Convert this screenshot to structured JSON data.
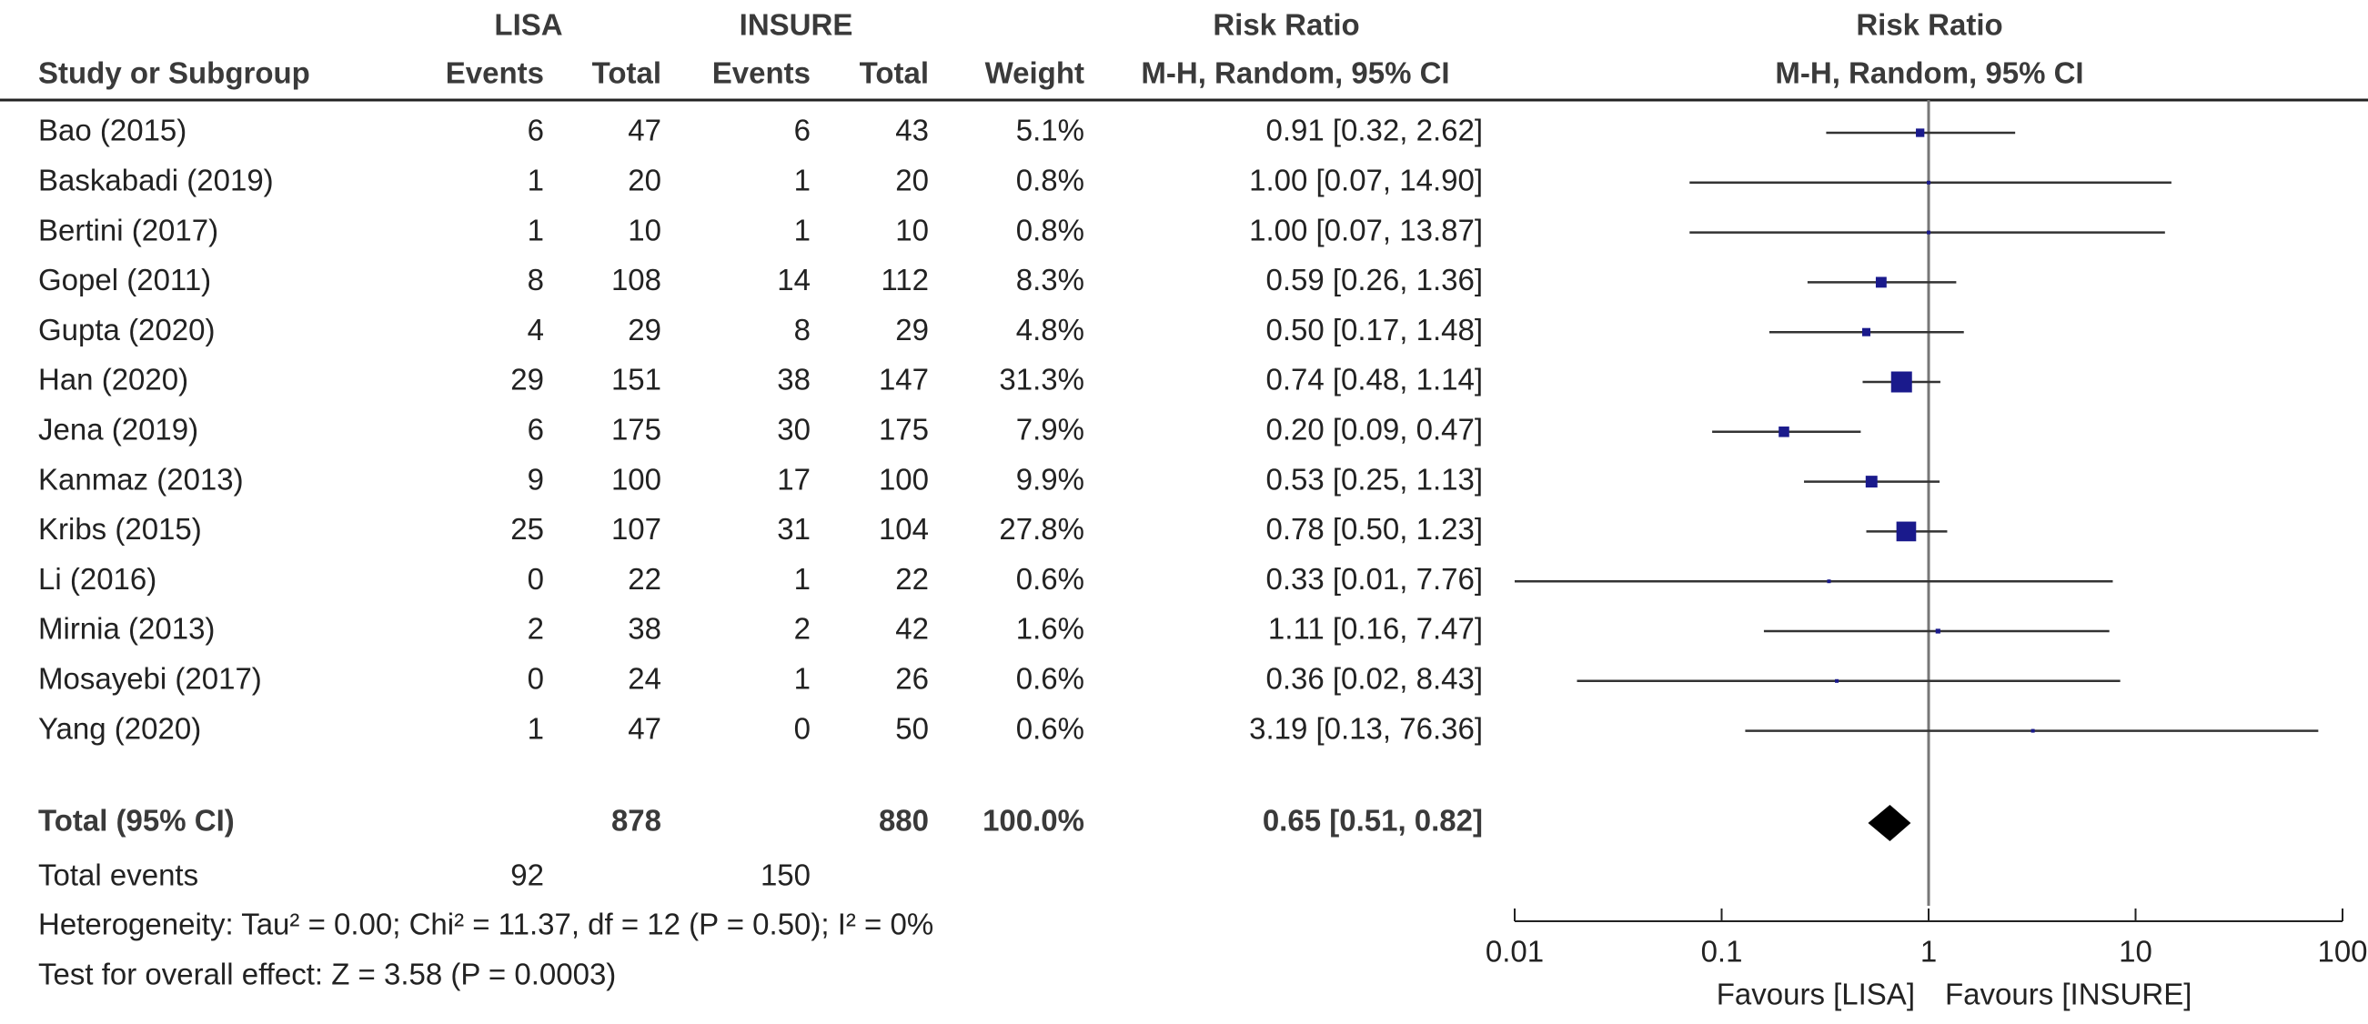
{
  "chart_data": {
    "type": "forest",
    "header": {
      "study": "Study or Subgroup",
      "group_1": "LISA",
      "group_2": "INSURE",
      "events_1": "Events",
      "total_1": "Total",
      "events_2": "Events",
      "total_2": "Total",
      "weight": "Weight",
      "table_effect": "Risk Ratio",
      "table_method": "M-H, Random, 95% CI",
      "plot_effect": "Risk Ratio",
      "plot_method": "M-H, Random, 95% CI"
    },
    "studies": [
      {
        "name": "Bao (2015)",
        "events_1": 6,
        "total_1": 47,
        "events_2": 6,
        "total_2": 43,
        "weight": 5.1,
        "weight_label": "5.1%",
        "rr": 0.91,
        "ci_low": 0.32,
        "ci_high": 2.62,
        "rr_label": "0.91 [0.32, 2.62]"
      },
      {
        "name": "Baskabadi (2019)",
        "events_1": 1,
        "total_1": 20,
        "events_2": 1,
        "total_2": 20,
        "weight": 0.8,
        "weight_label": "0.8%",
        "rr": 1.0,
        "ci_low": 0.07,
        "ci_high": 14.9,
        "rr_label": "1.00 [0.07, 14.90]"
      },
      {
        "name": "Bertini (2017)",
        "events_1": 1,
        "total_1": 10,
        "events_2": 1,
        "total_2": 10,
        "weight": 0.8,
        "weight_label": "0.8%",
        "rr": 1.0,
        "ci_low": 0.07,
        "ci_high": 13.87,
        "rr_label": "1.00 [0.07, 13.87]"
      },
      {
        "name": "Gopel (2011)",
        "events_1": 8,
        "total_1": 108,
        "events_2": 14,
        "total_2": 112,
        "weight": 8.3,
        "weight_label": "8.3%",
        "rr": 0.59,
        "ci_low": 0.26,
        "ci_high": 1.36,
        "rr_label": "0.59 [0.26, 1.36]"
      },
      {
        "name": "Gupta (2020)",
        "events_1": 4,
        "total_1": 29,
        "events_2": 8,
        "total_2": 29,
        "weight": 4.8,
        "weight_label": "4.8%",
        "rr": 0.5,
        "ci_low": 0.17,
        "ci_high": 1.48,
        "rr_label": "0.50 [0.17, 1.48]"
      },
      {
        "name": "Han (2020)",
        "events_1": 29,
        "total_1": 151,
        "events_2": 38,
        "total_2": 147,
        "weight": 31.3,
        "weight_label": "31.3%",
        "rr": 0.74,
        "ci_low": 0.48,
        "ci_high": 1.14,
        "rr_label": "0.74 [0.48, 1.14]"
      },
      {
        "name": "Jena (2019)",
        "events_1": 6,
        "total_1": 175,
        "events_2": 30,
        "total_2": 175,
        "weight": 7.9,
        "weight_label": "7.9%",
        "rr": 0.2,
        "ci_low": 0.09,
        "ci_high": 0.47,
        "rr_label": "0.20 [0.09, 0.47]"
      },
      {
        "name": "Kanmaz (2013)",
        "events_1": 9,
        "total_1": 100,
        "events_2": 17,
        "total_2": 100,
        "weight": 9.9,
        "weight_label": "9.9%",
        "rr": 0.53,
        "ci_low": 0.25,
        "ci_high": 1.13,
        "rr_label": "0.53 [0.25, 1.13]"
      },
      {
        "name": "Kribs (2015)",
        "events_1": 25,
        "total_1": 107,
        "events_2": 31,
        "total_2": 104,
        "weight": 27.8,
        "weight_label": "27.8%",
        "rr": 0.78,
        "ci_low": 0.5,
        "ci_high": 1.23,
        "rr_label": "0.78 [0.50, 1.23]"
      },
      {
        "name": "Li (2016)",
        "events_1": 0,
        "total_1": 22,
        "events_2": 1,
        "total_2": 22,
        "weight": 0.6,
        "weight_label": "0.6%",
        "rr": 0.33,
        "ci_low": 0.01,
        "ci_high": 7.76,
        "rr_label": "0.33 [0.01, 7.76]"
      },
      {
        "name": "Mirnia (2013)",
        "events_1": 2,
        "total_1": 38,
        "events_2": 2,
        "total_2": 42,
        "weight": 1.6,
        "weight_label": "1.6%",
        "rr": 1.11,
        "ci_low": 0.16,
        "ci_high": 7.47,
        "rr_label": "1.11 [0.16, 7.47]"
      },
      {
        "name": "Mosayebi (2017)",
        "events_1": 0,
        "total_1": 24,
        "events_2": 1,
        "total_2": 26,
        "weight": 0.6,
        "weight_label": "0.6%",
        "rr": 0.36,
        "ci_low": 0.02,
        "ci_high": 8.43,
        "rr_label": "0.36 [0.02, 8.43]"
      },
      {
        "name": "Yang (2020)",
        "events_1": 1,
        "total_1": 47,
        "events_2": 0,
        "total_2": 50,
        "weight": 0.6,
        "weight_label": "0.6%",
        "rr": 3.19,
        "ci_low": 0.13,
        "ci_high": 76.36,
        "rr_label": "3.19 [0.13, 76.36]"
      }
    ],
    "total": {
      "name": "Total (95% CI)",
      "total_1": 878,
      "total_2": 880,
      "weight": 100,
      "weight_label": "100.0%",
      "rr": 0.65,
      "ci_low": 0.51,
      "ci_high": 0.82,
      "rr_label": "0.65 [0.51, 0.82]"
    },
    "total_events": {
      "label": "Total events",
      "events_1": 92,
      "events_2": 150
    },
    "heterogeneity": "Heterogeneity: Tau² = 0.00; Chi² = 11.37, df = 12 (P = 0.50); I² = 0%",
    "overall_effect": "Test for overall effect: Z = 3.58 (P = 0.0003)",
    "log_scale": true,
    "xlim": [
      0.01,
      100
    ],
    "xticks": [
      0.01,
      0.1,
      1,
      10,
      100
    ],
    "reference_line": 1,
    "favours_left": "Favours [LISA]",
    "favours_right": "Favours [INSURE]",
    "marker_color": "#1a1a8c"
  }
}
